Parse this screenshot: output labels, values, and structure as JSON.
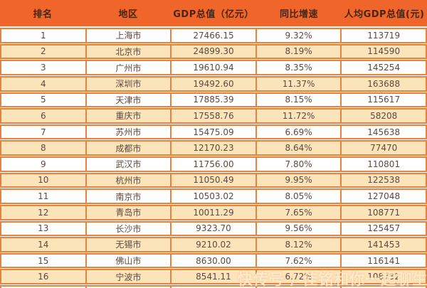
{
  "chart_data": {
    "type": "table",
    "title": "",
    "columns": [
      "排名",
      "地区",
      "GDP总值（亿元）",
      "同比增速",
      "人均GDP总值(元)"
    ],
    "rows": [
      [
        "1",
        "上海市",
        "27466.15",
        "9.32%",
        "113719"
      ],
      [
        "2",
        "北京市",
        "24899.30",
        "8.19%",
        "114590"
      ],
      [
        "3",
        "广州市",
        "19610.94",
        "8.35%",
        "145254"
      ],
      [
        "4",
        "深圳市",
        "19492.60",
        "11.37%",
        "163688"
      ],
      [
        "5",
        "天津市",
        "17885.39",
        "8.15%",
        "115617"
      ],
      [
        "6",
        "重庆市",
        "17558.76",
        "11.72%",
        "58208"
      ],
      [
        "7",
        "苏州市",
        "15475.09",
        "6.69%",
        "145638"
      ],
      [
        "8",
        "成都市",
        "12170.23",
        "8.64%",
        "77470"
      ],
      [
        "9",
        "武汉市",
        "11756.00",
        "7.80%",
        "110801"
      ],
      [
        "10",
        "杭州市",
        "11050.49",
        "9.95%",
        "122538"
      ],
      [
        "11",
        "南京市",
        "10503.02",
        "8.05%",
        "127048"
      ],
      [
        "12",
        "青岛市",
        "10011.29",
        "7.65%",
        "108771"
      ],
      [
        "13",
        "长沙市",
        "9323.70",
        "9.56%",
        "125457"
      ],
      [
        "14",
        "无锡市",
        "9210.02",
        "8.12%",
        "141453"
      ],
      [
        "15",
        "佛山市",
        "8630.00",
        "7.62%",
        "116141"
      ],
      [
        "16",
        "宁波市",
        "8541.11",
        "6.72%",
        "108732"
      ]
    ],
    "layout": {
      "grid": true,
      "alternating_rows": true,
      "header_position": "top"
    }
  },
  "watermark": {
    "text": "快传号 / 佳铭和你一起聊生活"
  },
  "colors": {
    "header_bg": "#f0662a",
    "header_text": "#4a2410",
    "grid_border": "#e9823d",
    "row_alt_bg": "#fbe3ba",
    "row_plain_bg": "#fefefe",
    "body_text": "#5d4a3e",
    "watermark_text": "#ffeed2"
  }
}
